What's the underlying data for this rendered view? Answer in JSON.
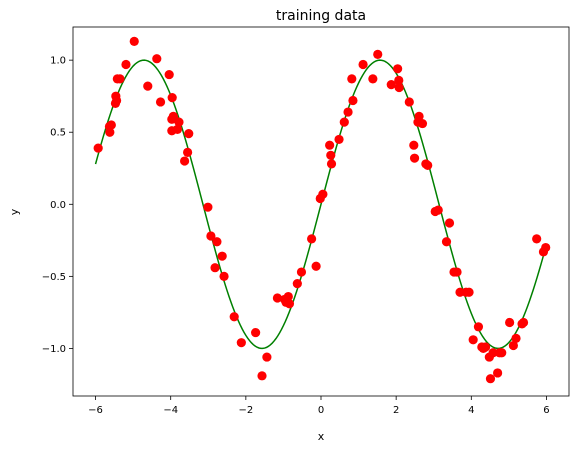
{
  "chart_data": {
    "type": "scatter",
    "title": "training data",
    "xlabel": "x",
    "ylabel": "y",
    "xlim": [
      -6.6,
      6.6
    ],
    "ylim": [
      -1.33,
      1.23
    ],
    "x_ticks": [
      -6,
      -4,
      -2,
      0,
      2,
      4,
      6
    ],
    "x_tick_labels": [
      "−6",
      "−4",
      "−2",
      "0",
      "2",
      "4",
      "6"
    ],
    "y_ticks": [
      -1.0,
      -0.5,
      0.0,
      0.5,
      1.0
    ],
    "y_tick_labels": [
      "−1.0",
      "−0.5",
      "0.0",
      "0.5",
      "1.0"
    ],
    "grid": false,
    "series": [
      {
        "kind": "scatter",
        "color": "#ff0000",
        "x": [
          -5.93,
          -5.63,
          -5.62,
          -5.58,
          -5.47,
          -5.46,
          -5.44,
          -5.42,
          -5.35,
          -5.19,
          -4.97,
          -4.61,
          -4.37,
          -4.27,
          -4.04,
          -3.97,
          -3.97,
          -3.96,
          -3.93,
          -3.92,
          -3.82,
          -3.78,
          -3.63,
          -3.55,
          -3.52,
          -3.01,
          -2.93,
          -2.82,
          -2.77,
          -2.63,
          -2.58,
          -2.31,
          -2.12,
          -1.74,
          -1.57,
          -1.44,
          -1.16,
          -0.97,
          -0.93,
          -0.87,
          -0.84,
          -0.63,
          -0.52,
          -0.25,
          -0.13,
          -0.02,
          0.05,
          0.23,
          0.26,
          0.28,
          0.48,
          0.62,
          0.72,
          0.82,
          0.85,
          1.12,
          1.38,
          1.51,
          1.87,
          2.04,
          2.07,
          2.08,
          2.35,
          2.47,
          2.49,
          2.58,
          2.61,
          2.7,
          2.79,
          2.84,
          3.04,
          3.12,
          3.34,
          3.42,
          3.54,
          3.62,
          3.7,
          3.86,
          3.94,
          4.05,
          4.19,
          4.28,
          4.32,
          4.38,
          4.48,
          4.51,
          4.58,
          4.7,
          4.75,
          4.81,
          5.02,
          5.12,
          5.19,
          5.35,
          5.39,
          5.74,
          5.92,
          5.98
        ],
        "y": [
          0.39,
          0.54,
          0.5,
          0.55,
          0.7,
          0.75,
          0.72,
          0.87,
          0.87,
          0.97,
          1.13,
          0.82,
          1.01,
          0.71,
          0.9,
          0.51,
          0.59,
          0.74,
          0.61,
          0.6,
          0.52,
          0.57,
          0.3,
          0.36,
          0.49,
          -0.02,
          -0.22,
          -0.44,
          -0.26,
          -0.36,
          -0.5,
          -0.78,
          -0.96,
          -0.89,
          -1.19,
          -1.06,
          -0.65,
          -0.66,
          -0.68,
          -0.64,
          -0.69,
          -0.55,
          -0.47,
          -0.24,
          -0.43,
          0.04,
          0.07,
          0.41,
          0.34,
          0.28,
          0.45,
          0.57,
          0.64,
          0.87,
          0.72,
          0.97,
          0.87,
          1.04,
          0.83,
          0.94,
          0.86,
          0.81,
          0.71,
          0.41,
          0.32,
          0.57,
          0.61,
          0.56,
          0.28,
          0.27,
          -0.05,
          -0.04,
          -0.26,
          -0.13,
          -0.47,
          -0.47,
          -0.61,
          -0.61,
          -0.61,
          -0.94,
          -0.85,
          -0.99,
          -1.0,
          -0.99,
          -1.06,
          -1.21,
          -1.03,
          -1.17,
          -1.03,
          -1.03,
          -0.82,
          -0.98,
          -0.93,
          -0.83,
          -0.82,
          -0.24,
          -0.33,
          -0.3
        ]
      },
      {
        "kind": "line",
        "color": "#008000",
        "function": "sin(x)",
        "x_range": [
          -6,
          6
        ]
      }
    ]
  }
}
